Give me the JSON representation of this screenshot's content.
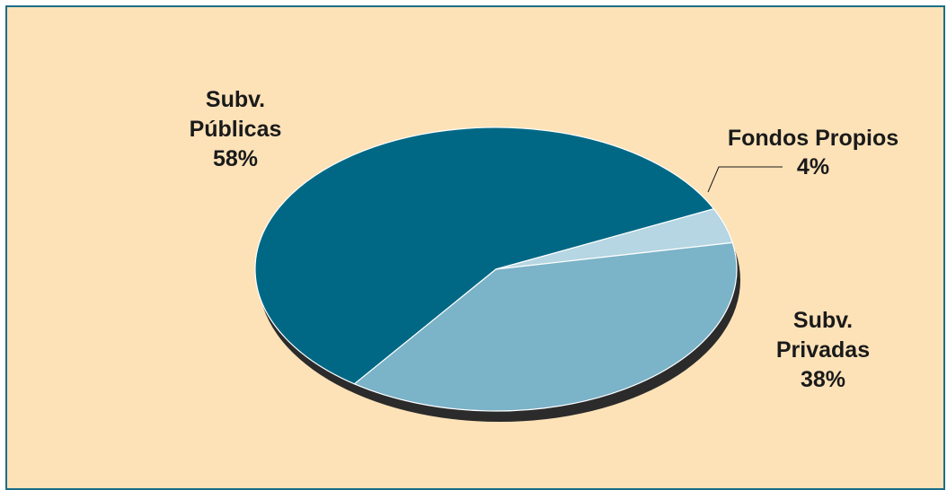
{
  "chart_data": {
    "type": "pie",
    "style": "3d-oval",
    "slices": [
      {
        "name": "Subv. Públicas",
        "label_lines": [
          "Subv.",
          "Públicas"
        ],
        "value": 58,
        "value_label": "58%",
        "color": "#006885"
      },
      {
        "name": "Fondos Propios",
        "label_lines": [
          "Fondos Propios"
        ],
        "value": 4,
        "value_label": "4%",
        "color": "#b5d6e2"
      },
      {
        "name": "Subv. Privadas",
        "label_lines": [
          "Subv.",
          "Privadas"
        ],
        "value": 38,
        "value_label": "38%",
        "color": "#7bb3c8"
      }
    ],
    "legend": "none",
    "title": "",
    "colors": {
      "background": "#fde2b8",
      "border": "#1a6e86",
      "shadow": "#2b2b2b"
    }
  }
}
